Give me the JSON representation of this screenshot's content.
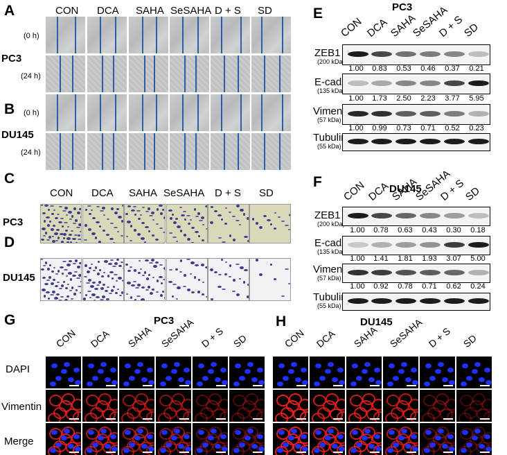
{
  "panels": {
    "A": "A",
    "B": "B",
    "C": "C",
    "D": "D",
    "E": "E",
    "F": "F",
    "G": "G",
    "H": "H"
  },
  "groups": [
    "CON",
    "DCA",
    "SAHA",
    "SeSAHA",
    "D + S",
    "SD"
  ],
  "cell_lines": {
    "pc3": "PC3",
    "du145": "DU145"
  },
  "timepoints": {
    "t0": "(0 h)",
    "t24": "(24 h)"
  },
  "western": {
    "E": {
      "title": "PC3",
      "proteins": [
        {
          "name": "ZEB1",
          "kda": "(200 kDa)",
          "values": [
            "1.00",
            "0.83",
            "0.53",
            "0.46",
            "0.37",
            "0.21"
          ]
        },
        {
          "name": "E-cad",
          "kda": "(135 kDa)",
          "values": [
            "1.00",
            "1.73",
            "2.50",
            "2.23",
            "3.77",
            "5.95"
          ]
        },
        {
          "name": "Vimentin",
          "kda": "(57 kDa)",
          "values": [
            "1.00",
            "0.99",
            "0.73",
            "0.71",
            "0.52",
            "0.23"
          ]
        },
        {
          "name": "Tubulin",
          "kda": "(55 kDa)",
          "values": []
        }
      ]
    },
    "F": {
      "title": "DU145",
      "proteins": [
        {
          "name": "ZEB1",
          "kda": "(200 kDa)",
          "values": [
            "1.00",
            "0.78",
            "0.63",
            "0.43",
            "0.30",
            "0.18"
          ]
        },
        {
          "name": "E-cad",
          "kda": "(135 kDa)",
          "values": [
            "1.00",
            "1.41",
            "1.81",
            "1.93",
            "3.07",
            "5.00"
          ]
        },
        {
          "name": "Vimentin",
          "kda": "(57 kDa)",
          "values": [
            "1.00",
            "0.92",
            "0.78",
            "0.71",
            "0.62",
            "0.24"
          ]
        },
        {
          "name": "Tubulin",
          "kda": "(55 kDa)",
          "values": []
        }
      ]
    }
  },
  "if": {
    "G_title": "PC3",
    "H_title": "DU145",
    "rows": [
      "DAPI",
      "Vimentin",
      "Merge"
    ]
  }
}
